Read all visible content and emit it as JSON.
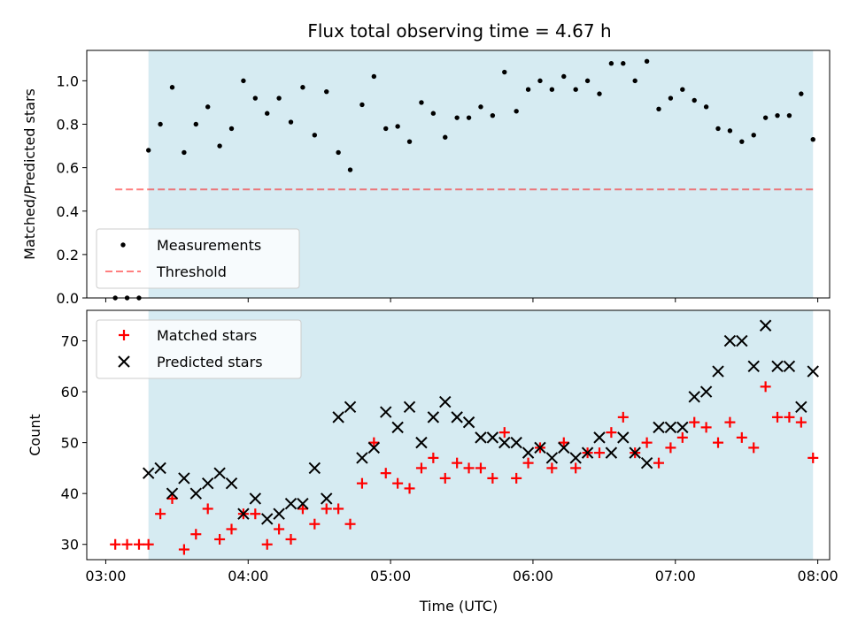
{
  "chart_data": [
    {
      "type": "scatter",
      "title": "Flux total observing time = 4.67 h",
      "xlabel": "",
      "ylabel": "Matched/Predicted stars",
      "ylim": [
        0,
        1.14
      ],
      "yticks": [
        0.0,
        0.2,
        0.4,
        0.6,
        0.8,
        1.0
      ],
      "yticklabels": [
        "0.0",
        "0.2",
        "0.4",
        "0.6",
        "0.8",
        "1.0"
      ],
      "legend_position": "lower-left",
      "shaded_span": {
        "start": "03:18",
        "end": "07:58",
        "color": "#add8e6"
      },
      "threshold": {
        "name": "Threshold",
        "value": 0.5,
        "x_start": "03:04",
        "x_end": "07:58",
        "color": "#ff0000"
      },
      "series": [
        {
          "name": "Measurements",
          "marker": "dot",
          "color": "#000000",
          "x": [
            "03:04",
            "03:09",
            "03:14",
            "03:18",
            "03:23",
            "03:28",
            "03:33",
            "03:38",
            "03:43",
            "03:48",
            "03:53",
            "03:58",
            "04:03",
            "04:08",
            "04:13",
            "04:18",
            "04:23",
            "04:28",
            "04:33",
            "04:38",
            "04:43",
            "04:48",
            "04:53",
            "04:58",
            "05:03",
            "05:08",
            "05:13",
            "05:18",
            "05:23",
            "05:28",
            "05:33",
            "05:38",
            "05:43",
            "05:48",
            "05:53",
            "05:58",
            "06:03",
            "06:08",
            "06:13",
            "06:18",
            "06:23",
            "06:28",
            "06:33",
            "06:38",
            "06:43",
            "06:48",
            "06:53",
            "06:58",
            "07:03",
            "07:08",
            "07:13",
            "07:18",
            "07:23",
            "07:28",
            "07:33",
            "07:38",
            "07:43",
            "07:48",
            "07:53",
            "07:58"
          ],
          "y": [
            0.0,
            0.0,
            0.0,
            0.68,
            0.8,
            0.97,
            0.67,
            0.8,
            0.88,
            0.7,
            0.78,
            1.0,
            0.92,
            0.85,
            0.92,
            0.81,
            0.97,
            0.75,
            0.95,
            0.67,
            0.59,
            0.89,
            1.02,
            0.78,
            0.79,
            0.72,
            0.9,
            0.85,
            0.74,
            0.83,
            0.83,
            0.88,
            0.84,
            1.04,
            0.86,
            0.96,
            1.0,
            0.96,
            1.02,
            0.96,
            1.0,
            0.94,
            1.08,
            1.08,
            1.0,
            1.09,
            0.87,
            0.92,
            0.96,
            0.91,
            0.88,
            0.78,
            0.77,
            0.72,
            0.75,
            0.83,
            0.84,
            0.84,
            0.94,
            0.73
          ]
        }
      ]
    },
    {
      "type": "scatter",
      "title": "",
      "xlabel": "Time (UTC)",
      "ylabel": "Count",
      "ylim": [
        27,
        76
      ],
      "yticks": [
        30,
        40,
        50,
        60,
        70
      ],
      "yticklabels": [
        "30",
        "40",
        "50",
        "60",
        "70"
      ],
      "xticks": [
        "03:00",
        "04:00",
        "05:00",
        "06:00",
        "07:00",
        "08:00"
      ],
      "xlim": [
        "02:52",
        "08:05"
      ],
      "legend_position": "upper-left",
      "shaded_span": {
        "start": "03:18",
        "end": "07:58",
        "color": "#add8e6"
      },
      "x": [
        "03:04",
        "03:09",
        "03:14",
        "03:18",
        "03:23",
        "03:28",
        "03:33",
        "03:38",
        "03:43",
        "03:48",
        "03:53",
        "03:58",
        "04:03",
        "04:08",
        "04:13",
        "04:18",
        "04:23",
        "04:28",
        "04:33",
        "04:38",
        "04:43",
        "04:48",
        "04:53",
        "04:58",
        "05:03",
        "05:08",
        "05:13",
        "05:18",
        "05:23",
        "05:28",
        "05:33",
        "05:38",
        "05:43",
        "05:48",
        "05:53",
        "05:58",
        "06:03",
        "06:08",
        "06:13",
        "06:18",
        "06:23",
        "06:28",
        "06:33",
        "06:38",
        "06:43",
        "06:48",
        "06:53",
        "06:58",
        "07:03",
        "07:08",
        "07:13",
        "07:18",
        "07:23",
        "07:28",
        "07:33",
        "07:38",
        "07:43",
        "07:48",
        "07:53",
        "07:58"
      ],
      "series": [
        {
          "name": "Matched stars",
          "marker": "plus",
          "color": "#ff0000",
          "values": [
            30,
            30,
            30,
            30,
            36,
            39,
            29,
            32,
            37,
            31,
            33,
            36,
            36,
            30,
            33,
            31,
            37,
            34,
            37,
            37,
            34,
            42,
            50,
            44,
            42,
            41,
            45,
            47,
            43,
            46,
            45,
            45,
            43,
            52,
            43,
            46,
            49,
            45,
            50,
            45,
            48,
            48,
            52,
            55,
            48,
            50,
            46,
            49,
            51,
            54,
            53,
            50,
            54,
            51,
            49,
            61,
            55,
            55,
            54,
            47
          ]
        },
        {
          "name": "Predicted stars",
          "marker": "x",
          "color": "#000000",
          "values": [
            null,
            null,
            null,
            44,
            45,
            40,
            43,
            40,
            42,
            44,
            42,
            36,
            39,
            35,
            36,
            38,
            38,
            45,
            39,
            55,
            57,
            47,
            49,
            56,
            53,
            57,
            50,
            55,
            58,
            55,
            54,
            51,
            51,
            50,
            50,
            48,
            49,
            47,
            49,
            47,
            48,
            51,
            48,
            51,
            48,
            46,
            53,
            53,
            53,
            59,
            60,
            64,
            70,
            70,
            65,
            73,
            65,
            65,
            57,
            64
          ]
        }
      ]
    }
  ]
}
